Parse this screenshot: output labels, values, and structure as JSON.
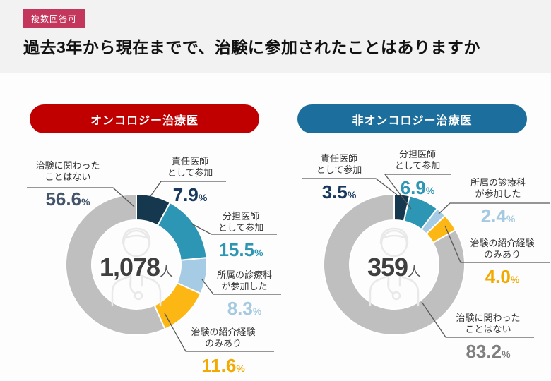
{
  "badge": {
    "label": "複数回答可"
  },
  "title": "過去3年から現在までで、治験に参加されたことはありますか",
  "colors": {
    "badge_bg": "#c4375d",
    "header_band_bg": "#f2f2f2",
    "oncology_header_bg": "#c00000",
    "non_oncology_header_bg": "#1c6e9c",
    "leader_line": "#595959",
    "center_text": "#3f3f3f"
  },
  "chart_data": [
    {
      "type": "pie",
      "variant": "donut",
      "group": "オンコロジー治療医",
      "total_value": 1078,
      "total_display": "1,078",
      "total_unit": "人",
      "start": "top",
      "direction": "clockwise",
      "segments": [
        {
          "label": "責任医師として参加",
          "label_lines": [
            "責任医師",
            "として参加"
          ],
          "value": 7.9,
          "value_display": "7.9",
          "unit": "%",
          "color": "#16384e",
          "pct_color": "#17375e"
        },
        {
          "label": "分担医師として参加",
          "label_lines": [
            "分担医師",
            "として参加"
          ],
          "value": 15.5,
          "value_display": "15.5",
          "unit": "%",
          "color": "#2e96b5",
          "pct_color": "#2e96b5"
        },
        {
          "label": "所属の診療科が参加した",
          "label_lines": [
            "所属の診療科",
            "が参加した"
          ],
          "value": 8.3,
          "value_display": "8.3",
          "unit": "%",
          "color": "#a6cbe4",
          "pct_color": "#a4c9e0"
        },
        {
          "label": "治験の紹介経験のみあり",
          "label_lines": [
            "治験の紹介経験",
            "のみあり"
          ],
          "value": 11.6,
          "value_display": "11.6",
          "unit": "%",
          "color": "#fdb714",
          "pct_color": "#f2a900"
        },
        {
          "label": "治験に関わったことはない",
          "label_lines": [
            "治験に関わった",
            "ことはない"
          ],
          "value": 56.6,
          "value_display": "56.6",
          "unit": "%",
          "color": "#bfbfbf",
          "pct_color": "#44546a"
        }
      ]
    },
    {
      "type": "pie",
      "variant": "donut",
      "group": "非オンコロジー治療医",
      "total_value": 359,
      "total_display": "359",
      "total_unit": "人",
      "start": "top",
      "direction": "clockwise",
      "segments": [
        {
          "label": "責任医師として参加",
          "label_lines": [
            "責任医師",
            "として参加"
          ],
          "value": 3.5,
          "value_display": "3.5",
          "unit": "%",
          "color": "#16384e",
          "pct_color": "#17375e"
        },
        {
          "label": "分担医師として参加",
          "label_lines": [
            "分担医師",
            "として参加"
          ],
          "value": 6.9,
          "value_display": "6.9",
          "unit": "%",
          "color": "#2e96b5",
          "pct_color": "#2e96b5"
        },
        {
          "label": "所属の診療科が参加した",
          "label_lines": [
            "所属の診療科",
            "が参加した"
          ],
          "value": 2.4,
          "value_display": "2.4",
          "unit": "%",
          "color": "#a6cbe4",
          "pct_color": "#a4c9e0"
        },
        {
          "label": "治験の紹介経験のみあり",
          "label_lines": [
            "治験の紹介経験",
            "のみあり"
          ],
          "value": 4.0,
          "value_display": "4.0",
          "unit": "%",
          "color": "#fdb714",
          "pct_color": "#f2a900"
        },
        {
          "label": "治験に関わったことはない",
          "label_lines": [
            "治験に関わった",
            "ことはない"
          ],
          "value": 83.2,
          "value_display": "83.2",
          "unit": "%",
          "color": "#bfbfbf",
          "pct_color": "#7f7f7f"
        }
      ]
    }
  ]
}
